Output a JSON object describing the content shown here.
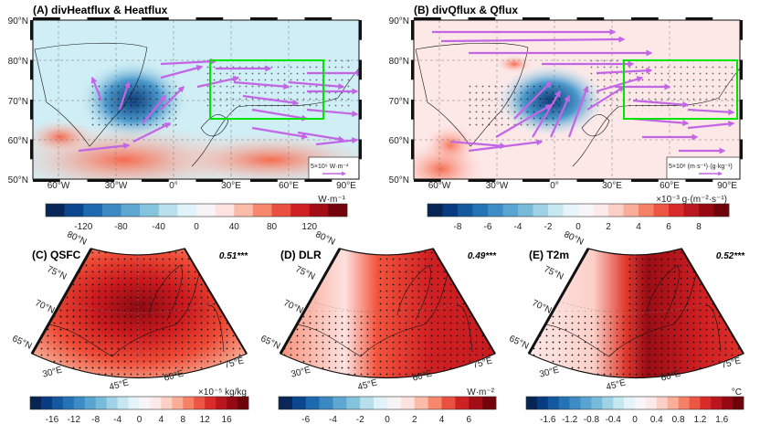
{
  "colors": {
    "arrow": "#c266e6",
    "box": "#00e600",
    "colormap_stops": [
      "#08183a",
      "#08408a",
      "#1f6fb4",
      "#4a98cc",
      "#7cbfd9",
      "#bfe5ef",
      "#f4fbfd",
      "#fde8e8",
      "#fbb5a0",
      "#f56b4f",
      "#d62425",
      "#9c0a14",
      "#5c0005"
    ]
  },
  "panels": {
    "A": {
      "title": "(A) divHeatflux & Heatflux",
      "lat_labels": [
        "90°N",
        "80°N",
        "70°N",
        "60°N",
        "50°N"
      ],
      "lon_labels": [
        "60°W",
        "30°W",
        "0°",
        "30°E",
        "60°E",
        "90°E"
      ],
      "ref_vector": "5×10⁹ W·m⁻²",
      "colorbar": {
        "unit": "W·m⁻¹",
        "range": [
          -160,
          160
        ],
        "segments": 16,
        "ticks": [
          "-120",
          "-80",
          "-40",
          "0",
          "40",
          "80",
          "120"
        ]
      }
    },
    "B": {
      "title": "(B) divQflux & Qflux",
      "lat_labels": [
        "90°N",
        "80°N",
        "70°N",
        "60°N",
        "50°N"
      ],
      "lon_labels": [
        "60°W",
        "30°W",
        "0°",
        "30°E",
        "60°E",
        "90°E"
      ],
      "ref_vector": "5×10⁸ (m·s⁻¹)·(g·kg⁻¹)",
      "colorbar": {
        "unit": "×10⁻³ g·(m⁻²·s⁻¹)",
        "range": [
          -10,
          10
        ],
        "segments": 20,
        "ticks": [
          "-8",
          "-6",
          "-4",
          "-2",
          "0",
          "2",
          "4",
          "6",
          "8"
        ]
      }
    },
    "C": {
      "title": "(C) QSFC",
      "correlation": "0.51***",
      "lat_labels": [
        "80°N",
        "75°N",
        "70°N",
        "65°N"
      ],
      "lon_labels": [
        "30°E",
        "45°E",
        "60°E",
        "75°E"
      ],
      "colorbar": {
        "unit": "×10⁻⁵ kg/kg",
        "range": [
          -20,
          20
        ],
        "segments": 20,
        "ticks": [
          "-16",
          "-12",
          "-8",
          "-4",
          "0",
          "4",
          "8",
          "12",
          "16"
        ]
      }
    },
    "D": {
      "title": "(D) DLR",
      "correlation": "0.49***",
      "lat_labels": [
        "80°N",
        "75°N",
        "70°N",
        "65°N"
      ],
      "lon_labels": [
        "30°E",
        "45°E",
        "60°E",
        "75°E"
      ],
      "colorbar": {
        "unit": "W·m⁻²",
        "range": [
          -8,
          8
        ],
        "segments": 16,
        "ticks": [
          "-6",
          "-4",
          "-2",
          "0",
          "2",
          "4",
          "6"
        ]
      }
    },
    "E": {
      "title": "(E) T2m",
      "correlation": "0.52***",
      "lat_labels": [
        "80°N",
        "75°N",
        "70°N",
        "65°N"
      ],
      "lon_labels": [
        "30°E",
        "45°E",
        "60°E",
        "75°E"
      ],
      "colorbar": {
        "unit": "°C",
        "range": [
          -2,
          2
        ],
        "segments": 20,
        "ticks": [
          "-1.6",
          "-1.2",
          "-0.8",
          "-0.4",
          "0",
          "0.4",
          "0.8",
          "1.2",
          "1.6"
        ]
      }
    }
  }
}
